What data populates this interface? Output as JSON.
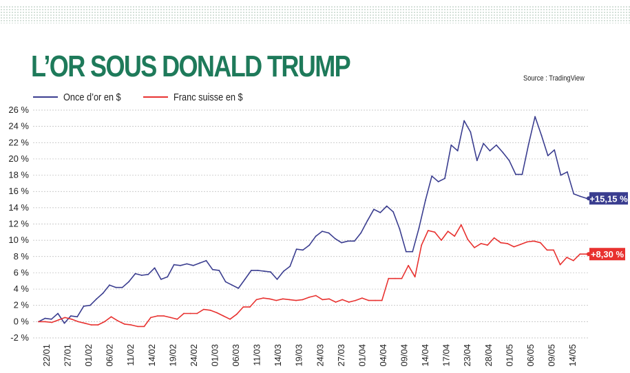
{
  "title": "L’OR SOUS DONALD TRUMP",
  "source": "Source : TradingView",
  "legend": [
    {
      "label": "Once d’or en $",
      "color": "#3a3d8f"
    },
    {
      "label": "Franc suisse en $",
      "color": "#e8312f"
    }
  ],
  "end_labels": [
    {
      "text": "+15,15 %",
      "color": "#3a3d8f"
    },
    {
      "text": "+8,30 %",
      "color": "#e8312f"
    }
  ],
  "chart_data": {
    "type": "line",
    "title": "L’OR SOUS DONALD TRUMP",
    "xlabel": "",
    "ylabel": "",
    "ylim": [
      -2,
      26
    ],
    "y_ticks": [
      -2,
      0,
      2,
      4,
      6,
      8,
      10,
      12,
      14,
      16,
      18,
      20,
      22,
      24,
      26
    ],
    "y_tick_labels": [
      "-2 %",
      "0 %",
      "2 %",
      "4 %",
      "6 %",
      "8 %",
      "10 %",
      "12 %",
      "14 %",
      "16 %",
      "18 %",
      "20 %",
      "22 %",
      "24 %",
      "26 %"
    ],
    "x_ticks": [
      "22/01",
      "27/01",
      "01/02",
      "06/02",
      "11/02",
      "14/02",
      "19/02",
      "24/02",
      "01/03",
      "06/03",
      "11/03",
      "14/03",
      "19/03",
      "24/03",
      "27/03",
      "01/04",
      "04/04",
      "09/04",
      "14/04",
      "17/04",
      "23/04",
      "28/04",
      "01/05",
      "06/05",
      "09/05",
      "14/05"
    ],
    "grid": true,
    "legend_position": "top-left",
    "series": [
      {
        "name": "Once d’or en $",
        "color": "#3a3d8f",
        "values": [
          0.0,
          0.4,
          0.3,
          1.0,
          -0.2,
          0.7,
          0.6,
          1.9,
          2.0,
          2.8,
          3.5,
          4.5,
          4.2,
          4.2,
          4.9,
          5.9,
          5.7,
          5.8,
          6.6,
          5.2,
          5.5,
          7.0,
          6.9,
          7.1,
          6.9,
          7.2,
          7.5,
          6.4,
          6.3,
          4.9,
          4.5,
          4.1,
          5.2,
          6.3,
          6.3,
          6.2,
          6.1,
          5.2,
          6.2,
          6.8,
          8.9,
          8.8,
          9.4,
          10.5,
          11.1,
          10.9,
          10.2,
          9.7,
          9.9,
          9.9,
          10.9,
          12.4,
          13.8,
          13.4,
          14.2,
          13.5,
          11.4,
          8.6,
          8.6,
          11.5,
          14.9,
          17.9,
          17.2,
          17.6,
          21.7,
          21.0,
          24.7,
          23.3,
          19.8,
          21.9,
          21.0,
          21.7,
          20.8,
          19.8,
          18.1,
          18.1,
          21.8,
          25.2,
          22.9,
          20.4,
          21.1,
          18.0,
          18.4,
          15.7,
          15.4,
          15.15
        ]
      },
      {
        "name": "Franc suisse en $",
        "color": "#e8312f",
        "values": [
          0.0,
          0.0,
          -0.1,
          0.2,
          0.5,
          0.3,
          0.0,
          -0.2,
          -0.4,
          -0.4,
          0.0,
          0.6,
          0.1,
          -0.3,
          -0.4,
          -0.6,
          -0.6,
          0.5,
          0.7,
          0.7,
          0.5,
          0.3,
          1.0,
          1.0,
          1.0,
          1.5,
          1.4,
          1.1,
          0.7,
          0.3,
          0.9,
          1.8,
          1.8,
          2.7,
          2.9,
          2.8,
          2.6,
          2.8,
          2.7,
          2.6,
          2.7,
          3.0,
          3.2,
          2.7,
          2.8,
          2.4,
          2.7,
          2.4,
          2.6,
          2.9,
          2.6,
          2.6,
          2.6,
          5.3,
          5.3,
          5.3,
          6.9,
          5.5,
          9.4,
          11.2,
          11.0,
          10.0,
          11.1,
          10.5,
          11.9,
          10.1,
          9.1,
          9.6,
          9.4,
          10.3,
          9.7,
          9.6,
          9.2,
          9.5,
          9.8,
          9.9,
          9.7,
          8.8,
          8.8,
          7.0,
          7.9,
          7.5,
          8.3,
          8.3
        ]
      }
    ]
  }
}
